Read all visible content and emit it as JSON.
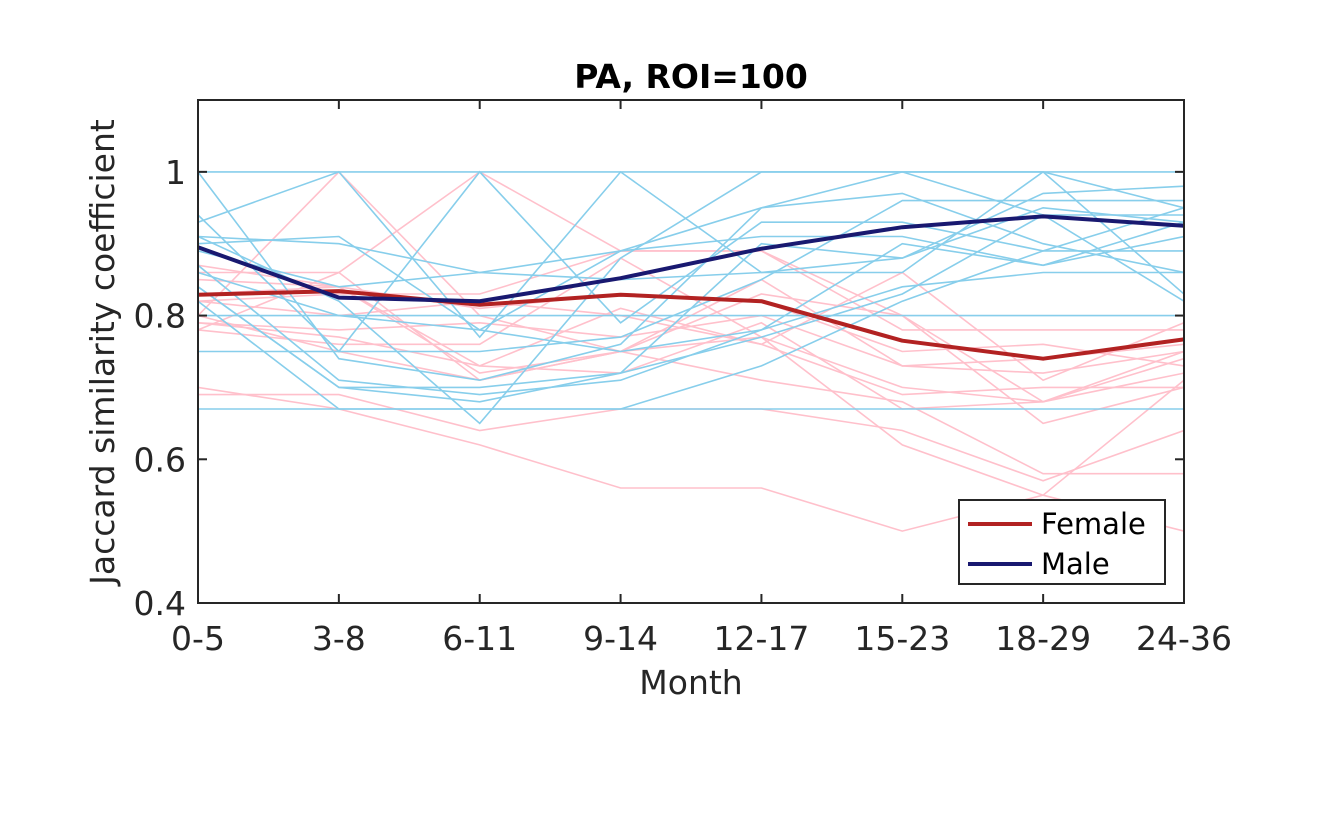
{
  "chart_data": {
    "type": "line",
    "title": "PA, ROI=100",
    "xlabel": "Month",
    "ylabel": "Jaccard similarity coefficient",
    "categories": [
      "0-5",
      "3-8",
      "6-11",
      "9-14",
      "12-17",
      "15-23",
      "18-29",
      "24-36"
    ],
    "ylim": [
      0.4,
      1.1
    ],
    "yticks": [
      0.4,
      0.6,
      0.8,
      1
    ],
    "ytick_labels": [
      "0.4",
      "0.6",
      "0.8",
      "1"
    ],
    "grid": false,
    "legend_position": "bottom-right",
    "series": [
      {
        "name": "Female",
        "color": "#b22222",
        "values": [
          0.829,
          0.834,
          0.815,
          0.829,
          0.82,
          0.765,
          0.74,
          0.767
        ]
      },
      {
        "name": "Male",
        "color": "#191970",
        "values": [
          0.895,
          0.825,
          0.82,
          0.852,
          0.893,
          0.923,
          0.938,
          0.925
        ]
      }
    ],
    "individual_series": {
      "female_color": "#ffc0cb",
      "male_color": "#87ceeb",
      "female": [
        [
          0.8,
          1.0,
          0.8,
          0.75,
          0.77,
          0.7,
          0.68,
          0.72
        ],
        [
          0.78,
          0.86,
          1.0,
          0.89,
          0.89,
          0.8,
          0.65,
          0.7
        ],
        [
          0.69,
          0.69,
          0.64,
          0.67,
          0.67,
          0.64,
          0.57,
          0.64
        ],
        [
          0.7,
          0.67,
          0.62,
          0.56,
          0.56,
          0.5,
          0.55,
          0.71
        ],
        [
          0.82,
          0.83,
          0.83,
          0.89,
          0.89,
          0.78,
          0.78,
          0.78
        ],
        [
          0.86,
          0.86,
          0.71,
          0.75,
          0.85,
          0.73,
          0.72,
          0.75
        ],
        [
          0.79,
          0.77,
          0.73,
          0.72,
          0.79,
          0.67,
          0.68,
          0.75
        ],
        [
          0.8,
          0.75,
          0.71,
          0.75,
          0.71,
          0.68,
          0.58,
          0.58
        ],
        [
          0.82,
          0.8,
          0.82,
          0.8,
          0.76,
          0.69,
          0.7,
          0.7
        ],
        [
          0.78,
          0.76,
          0.76,
          0.88,
          0.77,
          0.62,
          0.55,
          0.5
        ],
        [
          0.85,
          0.84,
          0.81,
          0.83,
          0.82,
          0.75,
          0.76,
          0.73
        ],
        [
          0.87,
          0.84,
          0.73,
          0.81,
          0.76,
          0.86,
          0.71,
          0.79
        ],
        [
          0.83,
          0.84,
          0.72,
          0.75,
          0.83,
          0.8,
          0.68,
          0.74
        ],
        [
          0.79,
          0.78,
          0.79,
          0.77,
          0.8,
          0.73,
          0.74,
          0.76
        ]
      ],
      "male": [
        [
          1.0,
          1.0,
          1.0,
          1.0,
          1.0,
          1.0,
          1.0,
          1.0
        ],
        [
          1.0,
          0.74,
          0.71,
          0.76,
          0.95,
          1.0,
          0.94,
          0.82
        ],
        [
          0.93,
          1.0,
          0.77,
          1.0,
          0.86,
          0.86,
          1.0,
          0.95
        ],
        [
          0.91,
          0.9,
          0.86,
          0.89,
          0.91,
          0.91,
          0.87,
          0.93
        ],
        [
          0.9,
          0.91,
          0.78,
          0.89,
          0.95,
          0.97,
          0.9,
          0.86
        ],
        [
          0.86,
          0.8,
          0.78,
          0.75,
          0.78,
          0.84,
          0.86,
          0.86
        ],
        [
          0.84,
          0.7,
          0.7,
          0.72,
          0.77,
          0.83,
          0.94,
          0.94
        ],
        [
          0.82,
          0.67,
          0.67,
          0.67,
          0.73,
          0.82,
          0.89,
          0.89
        ],
        [
          0.75,
          0.75,
          0.75,
          0.77,
          0.85,
          0.96,
          0.96,
          0.96
        ],
        [
          0.67,
          0.67,
          0.67,
          0.67,
          0.67,
          0.67,
          0.67,
          0.67
        ],
        [
          0.8,
          0.8,
          0.8,
          0.8,
          0.8,
          0.8,
          0.8,
          0.8
        ],
        [
          0.89,
          0.84,
          0.86,
          0.85,
          0.86,
          0.88,
          0.95,
          0.93
        ],
        [
          0.87,
          0.71,
          0.69,
          0.71,
          0.78,
          0.9,
          0.87,
          0.91
        ],
        [
          0.94,
          0.75,
          1.0,
          0.79,
          0.93,
          0.93,
          0.89,
          0.95
        ],
        [
          0.91,
          0.82,
          0.65,
          0.88,
          1.0,
          1.0,
          1.0,
          0.83
        ],
        [
          0.84,
          0.7,
          0.68,
          0.72,
          0.9,
          0.88,
          0.97,
          0.98
        ]
      ]
    }
  }
}
